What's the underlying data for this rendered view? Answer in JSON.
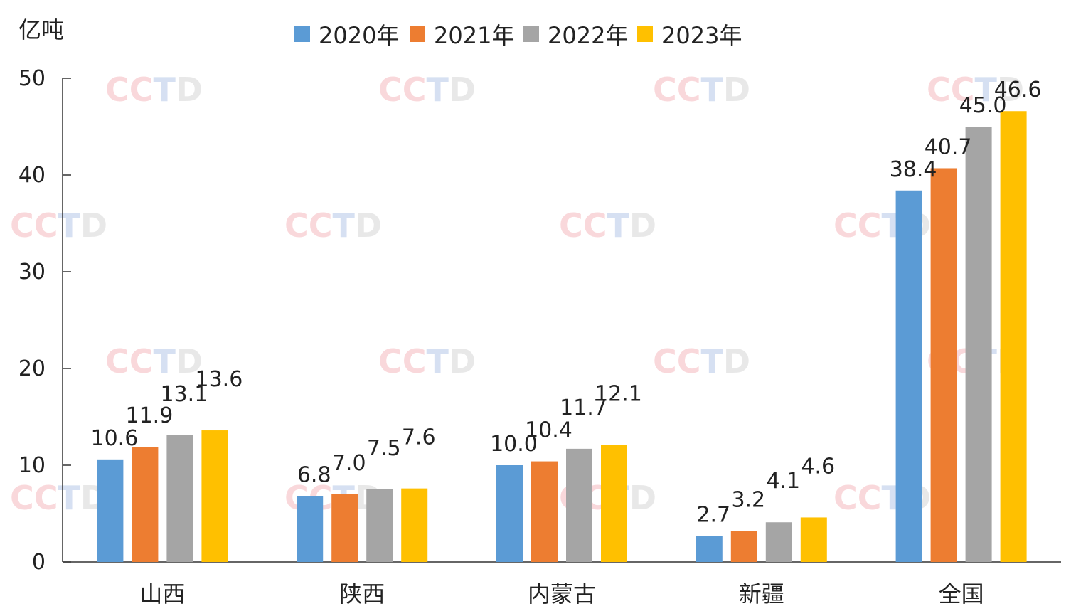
{
  "unit_label": "亿吨",
  "watermark": {
    "text": "CCTD",
    "colors": [
      "#e8545e",
      "#e8545e",
      "#4a78c8",
      "#9a9a9a"
    ]
  },
  "chart_data": {
    "type": "bar",
    "title": "",
    "xlabel": "",
    "ylabel": "亿吨",
    "ylim": [
      0,
      50
    ],
    "yticks": [
      0,
      10,
      20,
      30,
      40,
      50
    ],
    "grid": false,
    "legend_position": "top",
    "categories": [
      "山西",
      "陕西",
      "内蒙古",
      "新疆",
      "全国"
    ],
    "series": [
      {
        "name": "2020年",
        "color": "#5b9bd5",
        "values": [
          10.6,
          6.8,
          10.0,
          2.7,
          38.4
        ],
        "labels": [
          "10.6",
          "6.8",
          "10.0",
          "2.7",
          "38.4"
        ]
      },
      {
        "name": "2021年",
        "color": "#ed7d31",
        "values": [
          11.9,
          7.0,
          10.4,
          3.2,
          40.7
        ],
        "labels": [
          "11.9",
          "7.0",
          "10.4",
          "3.2",
          "40.7"
        ]
      },
      {
        "name": "2022年",
        "color": "#a5a5a5",
        "values": [
          13.1,
          7.5,
          11.7,
          4.1,
          45.0
        ],
        "labels": [
          "13.1",
          "7.5",
          "11.7",
          "4.1",
          "45.0"
        ]
      },
      {
        "name": "2023年",
        "color": "#ffc000",
        "values": [
          13.6,
          7.6,
          12.1,
          4.6,
          46.6
        ],
        "labels": [
          "13.6",
          "7.6",
          "12.1",
          "4.6",
          "46.6"
        ]
      }
    ]
  }
}
